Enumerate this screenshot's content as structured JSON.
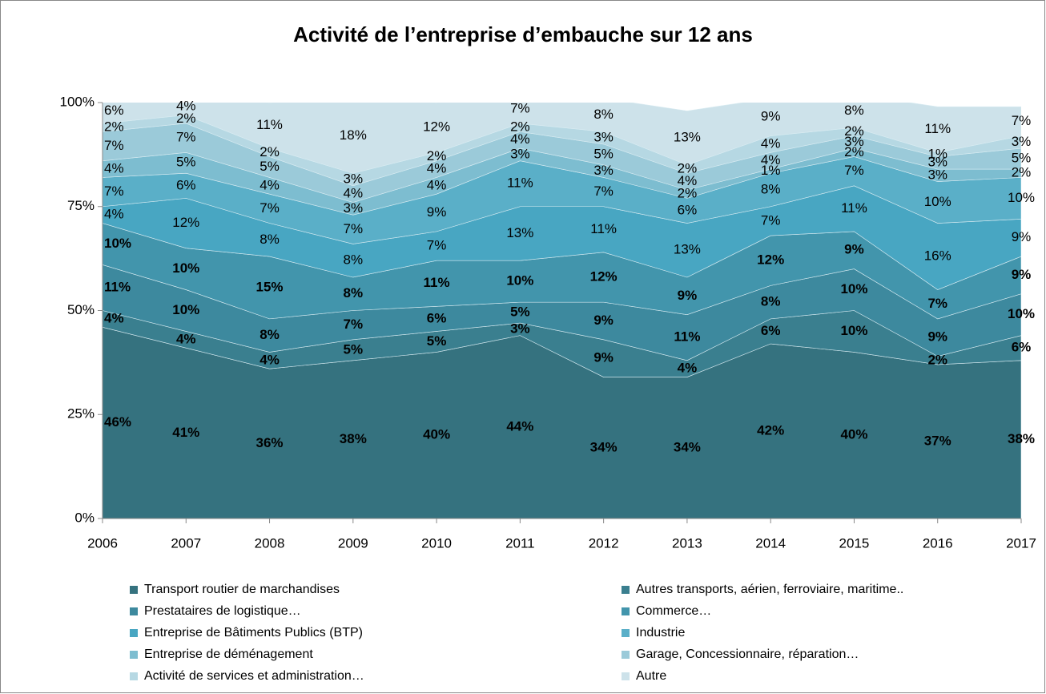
{
  "chart_data": {
    "type": "stacked_area_100",
    "title": "Activité de l’entreprise d’embauche sur 12 ans",
    "categories": [
      "2006",
      "2007",
      "2008",
      "2009",
      "2010",
      "2011",
      "2012",
      "2013",
      "2014",
      "2015",
      "2016",
      "2017"
    ],
    "ylim": [
      0,
      100
    ],
    "yticks": [
      {
        "value": 0,
        "label": "0%"
      },
      {
        "value": 25,
        "label": "25%"
      },
      {
        "value": 50,
        "label": "50%"
      },
      {
        "value": 75,
        "label": "75%"
      },
      {
        "value": 100,
        "label": "100%"
      }
    ],
    "grid": false,
    "series": [
      {
        "name": "Transport routier de marchandises",
        "color": "#35727f",
        "bold": true,
        "values": [
          46,
          41,
          36,
          38,
          40,
          44,
          34,
          34,
          42,
          40,
          37,
          38
        ],
        "value_labels": [
          "46%",
          "41%",
          "36%",
          "38%",
          "40%",
          "44%",
          "34%",
          "34%",
          "42%",
          "40%",
          "37%",
          "38%"
        ]
      },
      {
        "name": "Autres transports, aérien, ferroviaire, maritime..",
        "color": "#3a7f8f",
        "bold": true,
        "values": [
          4,
          4,
          4,
          5,
          5,
          3,
          9,
          4,
          6,
          10,
          2,
          6
        ],
        "value_labels": [
          "4%",
          "4%",
          "4%",
          "5%",
          "5%",
          "3%",
          "9%",
          "4%",
          "6%",
          "10%",
          "2%",
          "6%"
        ]
      },
      {
        "name": "Prestataires de logistique…",
        "color": "#3d899e",
        "bold": true,
        "values": [
          11,
          10,
          8,
          7,
          6,
          5,
          9,
          11,
          8,
          10,
          9,
          10
        ],
        "value_labels": [
          "11%",
          "10%",
          "8%",
          "7%",
          "6%",
          "5%",
          "9%",
          "11%",
          "8%",
          "10%",
          "9%",
          "10%"
        ]
      },
      {
        "name": "Commerce…",
        "color": "#4295ac",
        "bold": true,
        "values": [
          10,
          10,
          15,
          8,
          11,
          10,
          12,
          9,
          12,
          9,
          7,
          9
        ],
        "value_labels": [
          "10%",
          "10%",
          "15%",
          "8%",
          "11%",
          "10%",
          "12%",
          "9%",
          "12%",
          "9%",
          "7%",
          "9%"
        ]
      },
      {
        "name": "Entreprise de Bâtiments Publics (BTP)",
        "color": "#48a6c2",
        "bold": false,
        "values": [
          4,
          12,
          8,
          8,
          7,
          13,
          11,
          13,
          7,
          11,
          16,
          9
        ],
        "value_labels": [
          "4%",
          "12%",
          "8%",
          "8%",
          "7%",
          "13%",
          "11%",
          "13%",
          "7%",
          "11%",
          "16%",
          "9%"
        ]
      },
      {
        "name": "Industrie",
        "color": "#5aafc8",
        "bold": false,
        "values": [
          7,
          6,
          7,
          7,
          9,
          11,
          7,
          6,
          8,
          7,
          10,
          10
        ],
        "value_labels": [
          "7%",
          "6%",
          "7%",
          "7%",
          "9%",
          "11%",
          "7%",
          "6%",
          "8%",
          "7%",
          "10%",
          "10%"
        ]
      },
      {
        "name": "Entreprise de déménagement",
        "color": "#7dbdd0",
        "bold": false,
        "values": [
          4,
          5,
          4,
          3,
          4,
          3,
          3,
          2,
          1,
          2,
          3,
          2
        ],
        "value_labels": [
          "4%",
          "5%",
          "4%",
          "3%",
          "4%",
          "3%",
          "3%",
          "2%",
          "1%",
          "2%",
          "3%",
          "2%"
        ]
      },
      {
        "name": "Garage, Concessionnaire, réparation…",
        "color": "#9bcad9",
        "bold": false,
        "values": [
          7,
          7,
          5,
          4,
          4,
          4,
          5,
          4,
          4,
          3,
          3,
          5
        ],
        "value_labels": [
          "7%",
          "7%",
          "5%",
          "4%",
          "4%",
          "4%",
          "5%",
          "4%",
          "4%",
          "3%",
          "3%",
          "5%"
        ]
      },
      {
        "name": "Activité de services et administration…",
        "color": "#b6d8e3",
        "bold": false,
        "values": [
          2,
          2,
          2,
          3,
          2,
          2,
          3,
          2,
          4,
          2,
          1,
          3
        ],
        "value_labels": [
          "2%",
          "2%",
          "2%",
          "3%",
          "2%",
          "2%",
          "3%",
          "2%",
          "4%",
          "2%",
          "1%",
          "3%"
        ]
      },
      {
        "name": "Autre",
        "color": "#cde2ea",
        "bold": false,
        "values": [
          6,
          4,
          11,
          18,
          12,
          7,
          8,
          13,
          9,
          8,
          11,
          7
        ],
        "value_labels": [
          "6%",
          "4%",
          "11%",
          "18%",
          "12%",
          "7%",
          "8%",
          "13%",
          "9%",
          "8%",
          "11%",
          "7%"
        ]
      }
    ]
  }
}
